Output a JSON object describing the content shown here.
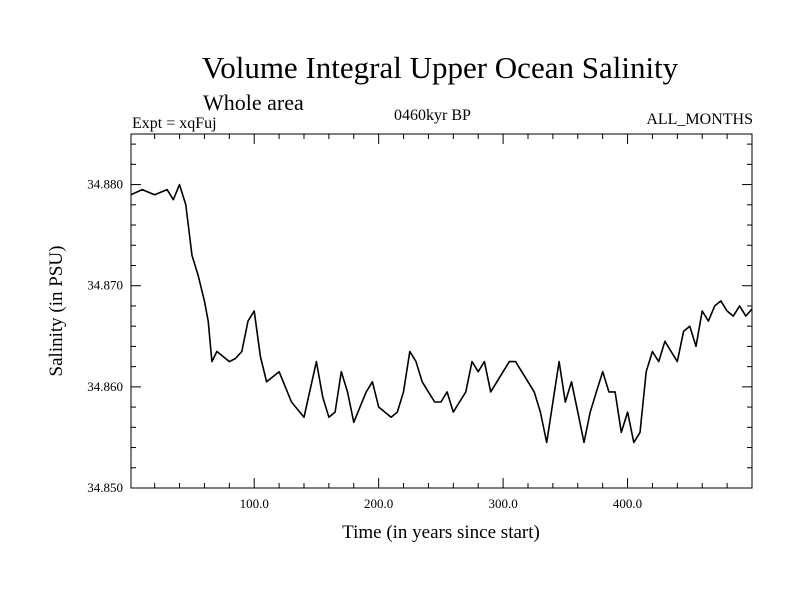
{
  "chart_data": {
    "type": "line",
    "title": "Volume Integral Upper Ocean Salinity",
    "subtitle": "Whole area",
    "expt_label": "Expt = xqFuj",
    "period_label": "0460kyr BP",
    "months_label": "ALL_MONTHS",
    "xlabel": "Time (in years since start)",
    "ylabel": "Salinity (in PSU)",
    "xlim": [
      1,
      500
    ],
    "ylim": [
      34.85,
      34.885
    ],
    "xticks": [
      100,
      200,
      300,
      400
    ],
    "xtick_labels": [
      "100.0",
      "200.0",
      "300.0",
      "400.0"
    ],
    "yticks": [
      34.85,
      34.86,
      34.87,
      34.88
    ],
    "ytick_labels": [
      "34.850",
      "34.860",
      "34.870",
      "34.880"
    ],
    "series": [
      {
        "name": "Salinity",
        "color": "#000000",
        "x": [
          1,
          10,
          20,
          30,
          35,
          40,
          45,
          50,
          55,
          60,
          63,
          66,
          70,
          75,
          80,
          85,
          90,
          95,
          100,
          105,
          110,
          115,
          120,
          130,
          140,
          150,
          155,
          160,
          165,
          170,
          175,
          180,
          185,
          190,
          195,
          200,
          205,
          210,
          215,
          220,
          225,
          230,
          235,
          240,
          245,
          250,
          255,
          260,
          265,
          270,
          275,
          280,
          285,
          290,
          295,
          300,
          305,
          310,
          315,
          320,
          325,
          330,
          335,
          340,
          345,
          350,
          355,
          360,
          365,
          370,
          375,
          380,
          385,
          390,
          395,
          400,
          405,
          410,
          415,
          420,
          425,
          430,
          435,
          440,
          445,
          450,
          455,
          460,
          465,
          470,
          475,
          480,
          485,
          490,
          495,
          500
        ],
        "values": [
          34.879,
          34.8795,
          34.879,
          34.8795,
          34.8785,
          34.88,
          34.878,
          34.873,
          34.871,
          34.8685,
          34.8665,
          34.8625,
          34.8635,
          34.863,
          34.8625,
          34.8628,
          34.8635,
          34.8665,
          34.8675,
          34.863,
          34.8605,
          34.861,
          34.8615,
          34.8585,
          34.857,
          34.8625,
          34.859,
          34.857,
          34.8575,
          34.8615,
          34.8595,
          34.8565,
          34.858,
          34.8595,
          34.8605,
          34.858,
          34.8575,
          34.857,
          34.8575,
          34.8595,
          34.8635,
          34.8625,
          34.8605,
          34.8595,
          34.8585,
          34.8585,
          34.8595,
          34.8575,
          34.8585,
          34.8595,
          34.8625,
          34.8615,
          34.8625,
          34.8595,
          34.8605,
          34.8615,
          34.8625,
          34.8625,
          34.8615,
          34.8605,
          34.8595,
          34.8575,
          34.8545,
          34.8585,
          34.8625,
          34.8585,
          34.8605,
          34.8575,
          34.8545,
          34.8575,
          34.8595,
          34.8615,
          34.8595,
          34.8595,
          34.8555,
          34.8575,
          34.8545,
          34.8555,
          34.8615,
          34.8635,
          34.8625,
          34.8645,
          34.8635,
          34.8625,
          34.8655,
          34.866,
          34.864,
          34.8675,
          34.8665,
          34.868,
          34.8685,
          34.8675,
          34.867,
          34.868,
          34.867,
          34.8677
        ]
      }
    ]
  }
}
